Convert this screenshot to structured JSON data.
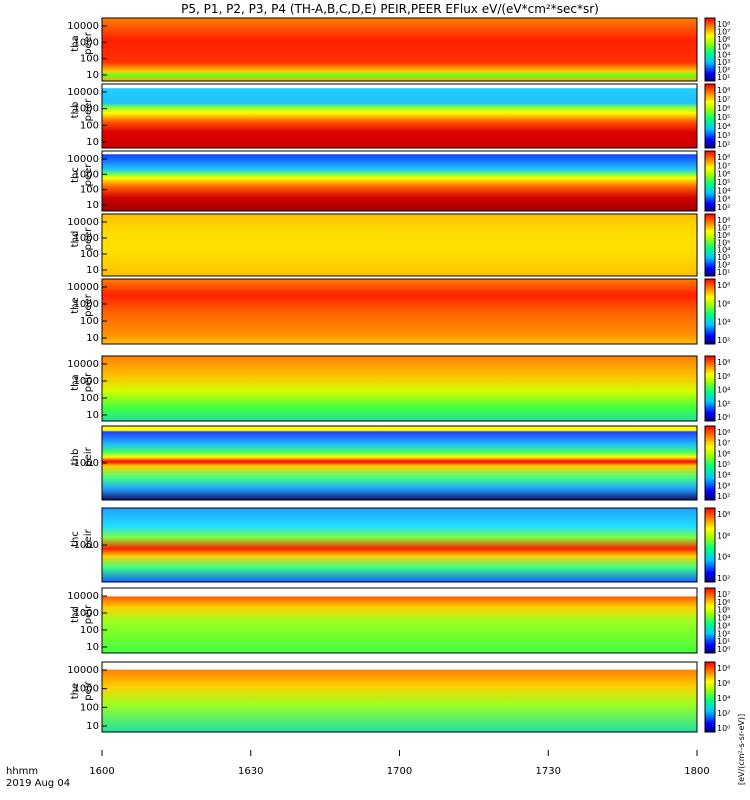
{
  "title": "P5, P1, P2, P3, P4 (TH-A,B,C,D,E) PEIR,PEER EFlux eV/(eV*cm²*sec*sr)",
  "xaxis": {
    "caption_line1": "hhmm",
    "caption_line2": "2019 Aug 04",
    "ticks": [
      "1600",
      "1630",
      "1700",
      "1730",
      "1800"
    ]
  },
  "colorbar_label": "[eV/(cm²-s-sr-eV)]",
  "colors": {
    "low": "#00008b",
    "mid": "#00ff00",
    "high": "#ff0000",
    "max": "#8b0000",
    "gap": "#ffffff"
  },
  "panels": [
    {
      "probe": "tha",
      "species": "peer",
      "ytick_labels": [
        "10000",
        "1000",
        "100",
        "10"
      ],
      "colorbar_ticks": [
        "10⁸",
        "10⁷",
        "10⁶",
        "10⁵",
        "10⁴",
        "10³",
        "10²",
        "10¹"
      ]
    },
    {
      "probe": "thb",
      "species": "peer",
      "ytick_labels": [
        "10000",
        "1000",
        "100",
        "10"
      ],
      "colorbar_ticks": [
        "10⁸",
        "10⁷",
        "10⁶",
        "10⁵",
        "10⁴",
        "10³",
        "10²"
      ]
    },
    {
      "probe": "thc",
      "species": "peer",
      "ytick_labels": [
        "10000",
        "1000",
        "100",
        "10"
      ],
      "colorbar_ticks": [
        "10⁸",
        "10⁷",
        "10⁶",
        "10⁵",
        "10⁴",
        "10³",
        "10²"
      ]
    },
    {
      "probe": "thd",
      "species": "peer",
      "ytick_labels": [
        "10000",
        "1000",
        "100",
        "10"
      ],
      "colorbar_ticks": [
        "10⁸",
        "10⁷",
        "10⁶",
        "10⁵",
        "10⁴",
        "10³",
        "10²",
        "10¹"
      ]
    },
    {
      "probe": "the",
      "species": "peer",
      "ytick_labels": [
        "10000",
        "1000",
        "100",
        "10"
      ],
      "colorbar_ticks": [
        "10⁸",
        "10⁶",
        "10⁴",
        "10²"
      ]
    },
    {
      "probe": "tha",
      "species": "peir",
      "ytick_labels": [
        "10000",
        "1000",
        "100",
        "10"
      ],
      "colorbar_ticks": [
        "10⁸",
        "10⁶",
        "10⁴",
        "10²",
        "10⁰"
      ]
    },
    {
      "probe": "thb",
      "species": "peir",
      "ytick_labels": [
        "1000"
      ],
      "colorbar_ticks": [
        "10⁸",
        "10⁷",
        "10⁶",
        "10⁵",
        "10⁴",
        "10³",
        "10²"
      ]
    },
    {
      "probe": "thc",
      "species": "peir",
      "ytick_labels": [
        "1000"
      ],
      "colorbar_ticks": [
        "10⁸",
        "10⁶",
        "10⁴",
        "10²"
      ]
    },
    {
      "probe": "thd",
      "species": "peir",
      "ytick_labels": [
        "10000",
        "1000",
        "100",
        "10"
      ],
      "colorbar_ticks": [
        "10⁷",
        "10⁶",
        "10⁵",
        "10⁴",
        "10³",
        "10²",
        "10¹",
        "10⁰"
      ]
    },
    {
      "probe": "the",
      "species": "peir",
      "ytick_labels": [
        "10000",
        "1000",
        "100",
        "10"
      ],
      "colorbar_ticks": [
        "10⁸",
        "10⁶",
        "10⁴",
        "10²",
        "10⁰"
      ]
    }
  ],
  "chart_data": {
    "type": "heatmap",
    "title": "P5, P1, P2, P3, P4 (TH-A,B,C,D,E) PEIR,PEER EFlux eV/(eV*cm²*sec*sr)",
    "x_range": [
      "1600",
      "1800"
    ],
    "x_unit": "hhmm",
    "date": "2019 Aug 04",
    "y_scale": "log",
    "y_range": [
      5,
      30000
    ],
    "colorbar_scale": "log",
    "colormap": "rainbow (blue-green-yellow-red)",
    "panel_count": 10,
    "panel_order": [
      "tha peer",
      "thb peer",
      "thc peer",
      "thd peer",
      "the peer",
      "tha peir",
      "thb peir",
      "thc peir",
      "thd peir",
      "the peir"
    ]
  }
}
